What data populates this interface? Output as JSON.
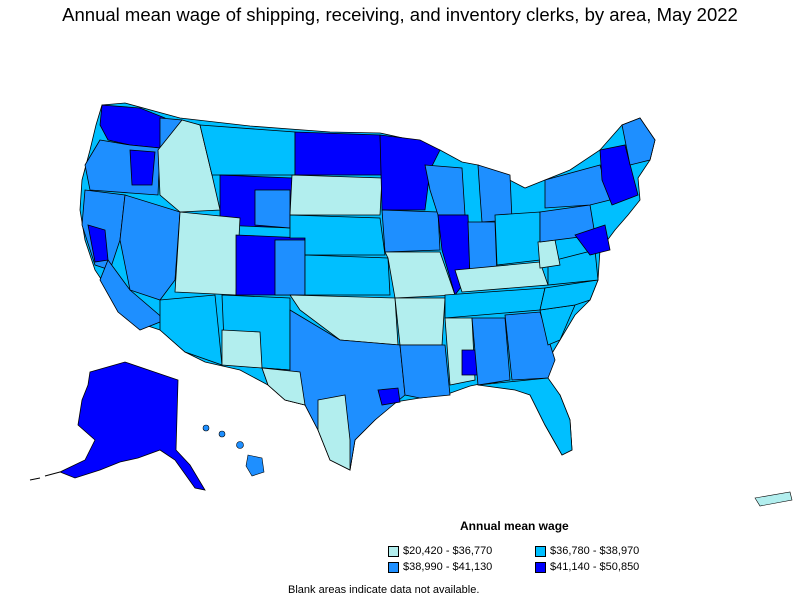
{
  "title": "Annual mean wage of shipping, receiving, and inventory clerks, by area, May 2022",
  "legend": {
    "title": "Annual mean wage",
    "items": [
      {
        "label": "$20,420 - $36,770",
        "color": "#b2eeee"
      },
      {
        "label": "$36,780 - $38,970",
        "color": "#00bfff"
      },
      {
        "label": "$38,990 - $41,130",
        "color": "#1e8fff"
      },
      {
        "label": "$41,140 - $50,850",
        "color": "#0000ff"
      }
    ]
  },
  "note": "Blank areas indicate data not available.",
  "colors": {
    "c1": "#b2eeee",
    "c2": "#00bfff",
    "c3": "#1e8fff",
    "c4": "#0000ff",
    "border": "#000000"
  }
}
